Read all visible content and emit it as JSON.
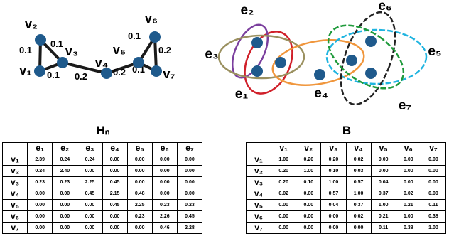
{
  "graph": {
    "nodes": [
      "v₁",
      "v₂",
      "v₃",
      "v₄",
      "v₅",
      "v₆",
      "v₇"
    ],
    "edges": [
      "0.1",
      "0.1",
      "0.1",
      "0.2",
      "0.2",
      "0.1",
      "0.2",
      "0.1"
    ]
  },
  "hypergraph": {
    "hyperedges": [
      "e₁",
      "e₂",
      "e₃",
      "e₄",
      "e₅",
      "e₆",
      "e₇"
    ]
  },
  "tables": [
    {
      "title": "Hₙ",
      "columns": [
        "e₁",
        "e₂",
        "e₃",
        "e₄",
        "e₅",
        "e₆",
        "e₇"
      ],
      "rows": [
        {
          "label": "v₁",
          "cells": [
            "2.39",
            "0.24",
            "0.24",
            "0.00",
            "0.00",
            "0.00",
            "0.00"
          ]
        },
        {
          "label": "v₂",
          "cells": [
            "0.24",
            "2.40",
            "0.00",
            "0.00",
            "0.00",
            "0.00",
            "0.00"
          ]
        },
        {
          "label": "v₃",
          "cells": [
            "0.23",
            "0.23",
            "2.25",
            "0.45",
            "0.00",
            "0.00",
            "0.00"
          ]
        },
        {
          "label": "v₄",
          "cells": [
            "0.00",
            "0.00",
            "0.45",
            "2.15",
            "0.48",
            "0.00",
            "0.00"
          ]
        },
        {
          "label": "v₅",
          "cells": [
            "0.00",
            "0.00",
            "0.00",
            "0.45",
            "2.25",
            "0.23",
            "0.23"
          ]
        },
        {
          "label": "v₆",
          "cells": [
            "0.00",
            "0.00",
            "0.00",
            "0.00",
            "0.23",
            "2.26",
            "0.45"
          ]
        },
        {
          "label": "v₇",
          "cells": [
            "0.00",
            "0.00",
            "0.00",
            "0.00",
            "0.00",
            "0.46",
            "2.28"
          ]
        }
      ]
    },
    {
      "title": "B",
      "columns": [
        "v₁",
        "v₂",
        "v₃",
        "v₄",
        "v₅",
        "v₆",
        "v₇"
      ],
      "rows": [
        {
          "label": "v₁",
          "cells": [
            "1.00",
            "0.20",
            "0.20",
            "0.02",
            "0.00",
            "0.00",
            "0.00"
          ]
        },
        {
          "label": "v₂",
          "cells": [
            "0.20",
            "1.00",
            "0.10",
            "0.03",
            "0.00",
            "0.00",
            "0.00"
          ]
        },
        {
          "label": "v₃",
          "cells": [
            "0.20",
            "0.10",
            "1.00",
            "0.57",
            "0.04",
            "0.00",
            "0.00"
          ]
        },
        {
          "label": "v₄",
          "cells": [
            "0.02",
            "0.00",
            "0.57",
            "1.00",
            "0.37",
            "0.02",
            "0.00"
          ]
        },
        {
          "label": "v₅",
          "cells": [
            "0.00",
            "0.00",
            "0.04",
            "0.37",
            "1.00",
            "0.21",
            "0.11"
          ]
        },
        {
          "label": "v₆",
          "cells": [
            "0.00",
            "0.00",
            "0.00",
            "0.02",
            "0.21",
            "1.00",
            "0.38"
          ]
        },
        {
          "label": "v₇",
          "cells": [
            "0.00",
            "0.00",
            "0.00",
            "0.00",
            "0.11",
            "0.38",
            "1.00"
          ]
        }
      ]
    }
  ]
}
